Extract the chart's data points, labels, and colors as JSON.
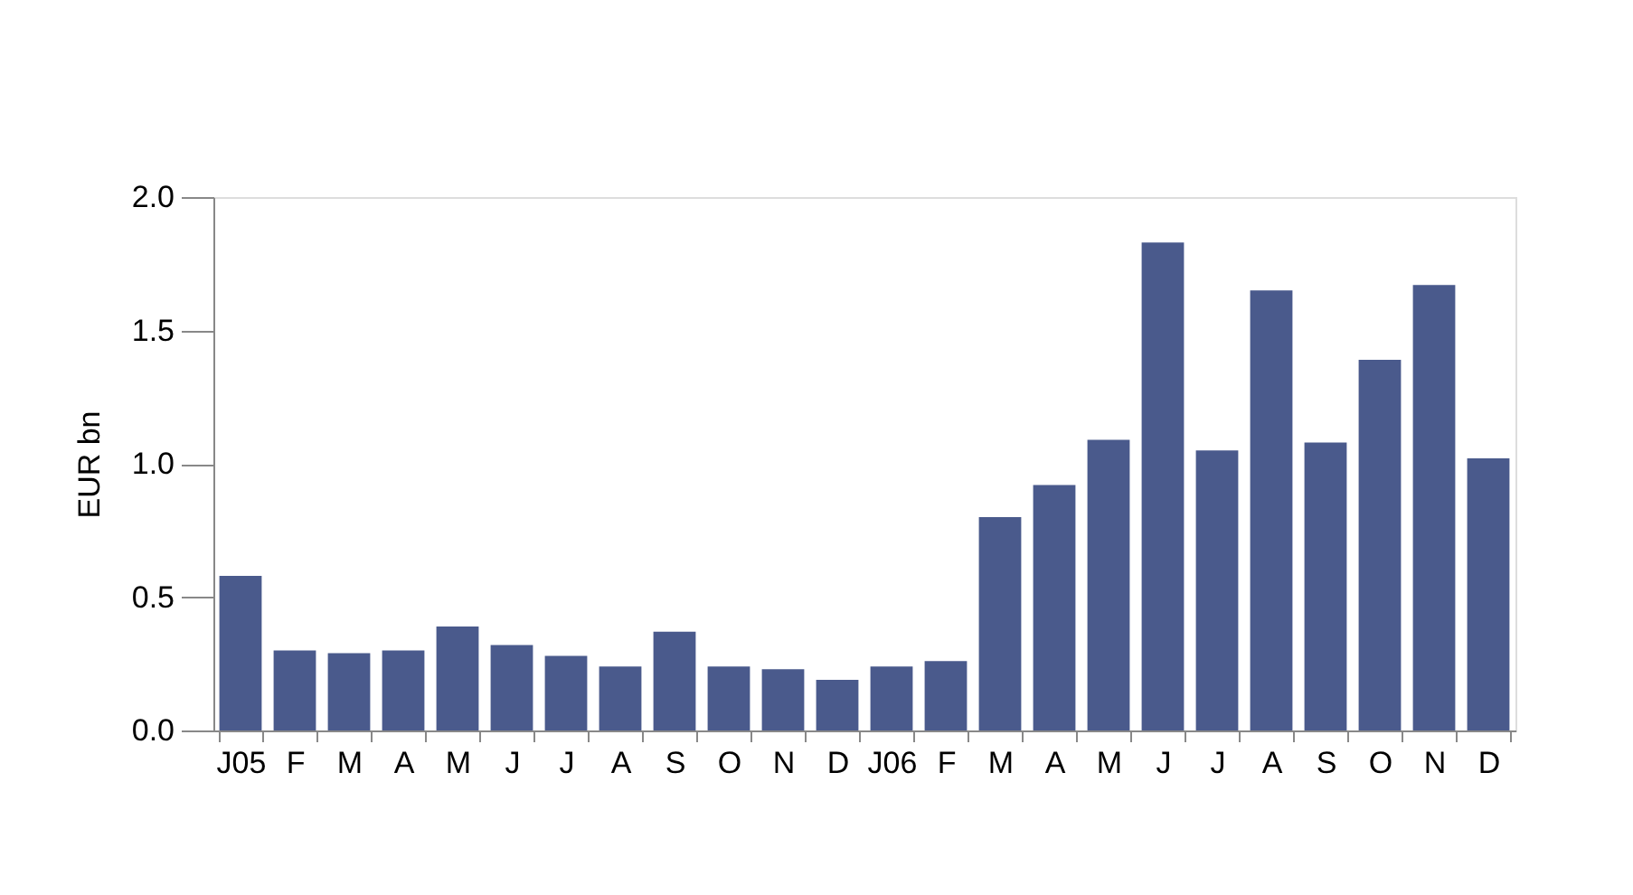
{
  "chart_data": {
    "type": "bar",
    "ylabel": "EUR bn",
    "categories": [
      "J05",
      "F",
      "M",
      "A",
      "M",
      "J",
      "J",
      "A",
      "S",
      "O",
      "N",
      "D",
      "J06",
      "F",
      "M",
      "A",
      "M",
      "J",
      "J",
      "A",
      "S",
      "O",
      "N",
      "D"
    ],
    "values": [
      0.58,
      0.3,
      0.29,
      0.3,
      0.39,
      0.32,
      0.28,
      0.24,
      0.37,
      0.24,
      0.23,
      0.19,
      0.24,
      0.26,
      0.8,
      0.92,
      1.09,
      1.83,
      1.05,
      1.65,
      1.08,
      1.39,
      1.67,
      1.02
    ],
    "color": "#4a5a8c",
    "ylim": [
      0,
      2.0
    ],
    "yticks": [
      {
        "value": 0,
        "label": "0.0"
      },
      {
        "value": 0.5,
        "label": "0.5"
      },
      {
        "value": 1.0,
        "label": "1.0"
      },
      {
        "value": 1.5,
        "label": "1.5"
      },
      {
        "value": 2.0,
        "label": "2.0"
      }
    ],
    "grid": false
  }
}
